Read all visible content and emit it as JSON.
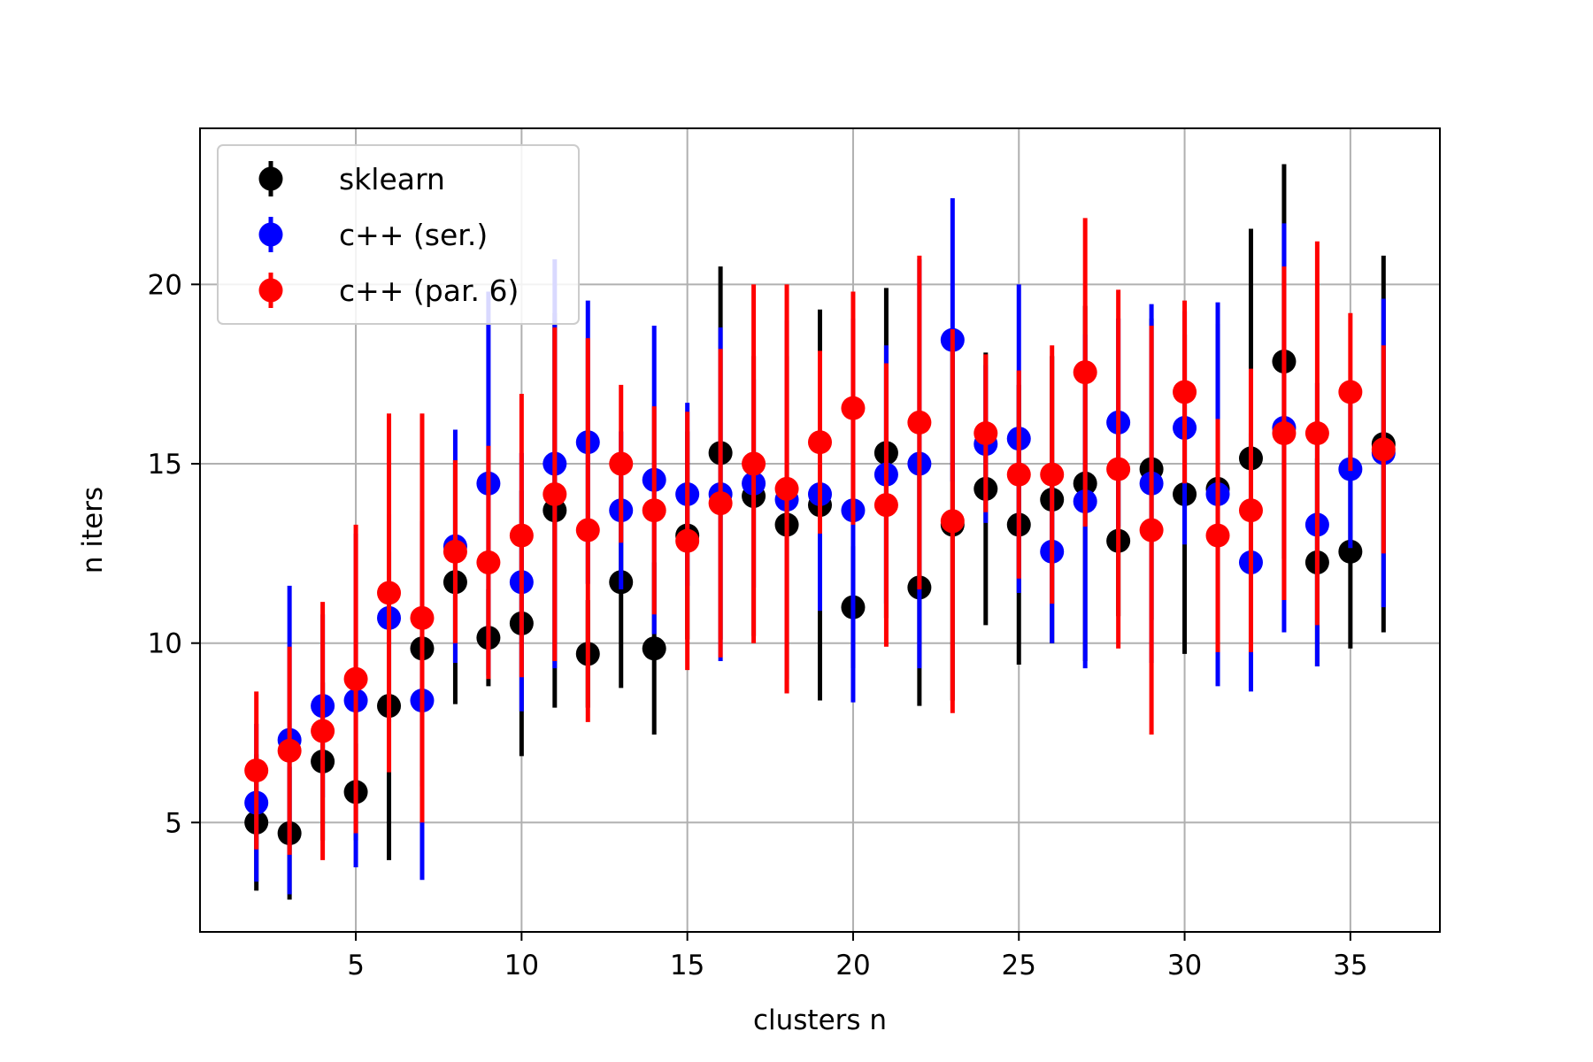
{
  "chart_data": {
    "type": "scatter",
    "title": "",
    "xlabel": "clusters n",
    "ylabel": "n iters",
    "xlim": [
      0.3,
      37.7
    ],
    "ylim": [
      1.95,
      24.35
    ],
    "xticks": [
      5,
      10,
      15,
      20,
      25,
      30,
      35
    ],
    "yticks": [
      5,
      10,
      15,
      20
    ],
    "grid": true,
    "legend_position": "upper-left",
    "x": [
      2,
      3,
      4,
      5,
      6,
      7,
      8,
      9,
      10,
      11,
      12,
      13,
      14,
      15,
      16,
      17,
      18,
      19,
      20,
      21,
      22,
      23,
      24,
      25,
      26,
      27,
      28,
      29,
      30,
      31,
      32,
      33,
      34,
      35,
      36
    ],
    "series": [
      {
        "name": "sklearn",
        "color": "#000000",
        "values": [
          5.0,
          4.7,
          6.7,
          5.85,
          8.25,
          9.85,
          11.7,
          10.15,
          10.55,
          13.7,
          9.7,
          11.7,
          9.85,
          13.0,
          15.3,
          14.1,
          13.3,
          13.85,
          11.0,
          15.3,
          11.55,
          13.3,
          14.3,
          13.3,
          14.0,
          14.45,
          12.85,
          14.85,
          14.15,
          14.3,
          15.15,
          17.85,
          12.25,
          12.55,
          15.55
        ],
        "errors": [
          1.9,
          1.85,
          2.2,
          1.35,
          4.3,
          3.85,
          3.4,
          1.35,
          3.7,
          5.5,
          1.5,
          2.95,
          2.4,
          2.9,
          5.2,
          3.9,
          4.7,
          5.45,
          1.7,
          4.6,
          3.3,
          4.9,
          3.8,
          3.9,
          4.0,
          4.95,
          2.1,
          4.2,
          4.45,
          4.6,
          6.4,
          5.5,
          2.9,
          2.7,
          5.25
        ]
      },
      {
        "name": "c++ (ser.)",
        "color": "#0000ff",
        "values": [
          5.55,
          7.3,
          8.25,
          8.4,
          10.7,
          8.4,
          12.7,
          14.45,
          11.7,
          15.0,
          15.6,
          13.7,
          14.55,
          14.15,
          14.15,
          14.45,
          14.0,
          14.15,
          13.7,
          14.7,
          15.0,
          18.45,
          15.55,
          15.7,
          12.55,
          13.95,
          16.15,
          14.45,
          16.0,
          14.15,
          12.25,
          16.0,
          13.3,
          14.85,
          15.3
        ]
      },
      {
        "name": "c++ (par. 6)",
        "color": "#ff0000",
        "values": [
          6.45,
          7.0,
          7.55,
          9.0,
          11.4,
          10.7,
          12.55,
          12.25,
          13.0,
          14.15,
          13.15,
          15.0,
          13.7,
          12.85,
          13.9,
          15.0,
          14.3,
          15.6,
          16.55,
          13.85,
          16.15,
          13.4,
          15.85,
          14.7,
          14.7,
          17.55,
          14.85,
          13.15,
          17.0,
          13.0,
          13.7,
          15.85,
          15.85,
          17.0,
          15.4
        ]
      }
    ]
  }
}
